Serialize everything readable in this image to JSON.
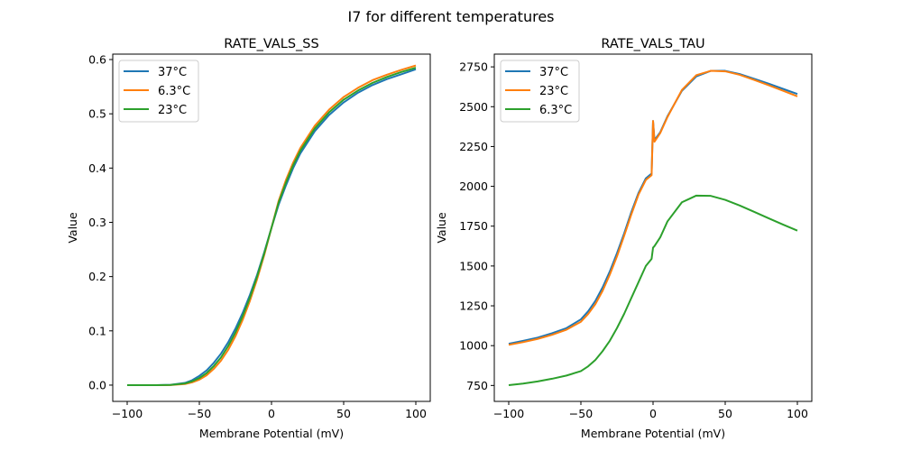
{
  "figure": {
    "suptitle": "I7 for different temperatures"
  },
  "chart_data": [
    {
      "type": "line",
      "title": "RATE_VALS_SS",
      "xlabel": "Membrane Potential (mV)",
      "ylabel": "Value",
      "xlim": [
        -110,
        110
      ],
      "ylim": [
        -0.03,
        0.61
      ],
      "xticks": [
        -100,
        -50,
        0,
        50,
        100
      ],
      "xtick_labels": [
        "−100",
        "−50",
        "0",
        "50",
        "100"
      ],
      "yticks": [
        0.0,
        0.1,
        0.2,
        0.3,
        0.4,
        0.5,
        0.6
      ],
      "ytick_labels": [
        "0.0",
        "0.1",
        "0.2",
        "0.3",
        "0.4",
        "0.5",
        "0.6"
      ],
      "grid": false,
      "legend_position": "top-left",
      "x": [
        -100,
        -90,
        -80,
        -70,
        -60,
        -55,
        -50,
        -45,
        -40,
        -35,
        -30,
        -25,
        -20,
        -15,
        -10,
        -5,
        0,
        5,
        10,
        15,
        20,
        30,
        40,
        50,
        60,
        70,
        80,
        90,
        100
      ],
      "series": [
        {
          "name": "37°C",
          "color": "#1f77b4",
          "values": [
            0.0,
            0.0,
            0.0,
            0.0005,
            0.004,
            0.009,
            0.017,
            0.027,
            0.041,
            0.058,
            0.079,
            0.104,
            0.133,
            0.166,
            0.203,
            0.245,
            0.29,
            0.333,
            0.368,
            0.4,
            0.427,
            0.468,
            0.498,
            0.521,
            0.539,
            0.553,
            0.564,
            0.573,
            0.582
          ]
        },
        {
          "name": "6.3°C",
          "color": "#ff7f0e",
          "values": [
            0.0,
            0.0,
            0.0,
            0.0002,
            0.002,
            0.005,
            0.01,
            0.018,
            0.03,
            0.045,
            0.065,
            0.09,
            0.12,
            0.155,
            0.195,
            0.24,
            0.29,
            0.34,
            0.378,
            0.41,
            0.437,
            0.478,
            0.508,
            0.531,
            0.548,
            0.562,
            0.572,
            0.581,
            0.589
          ]
        },
        {
          "name": "23°C",
          "color": "#2ca02c",
          "values": [
            0.0,
            0.0,
            0.0,
            0.0003,
            0.003,
            0.007,
            0.013,
            0.022,
            0.035,
            0.051,
            0.072,
            0.097,
            0.127,
            0.161,
            0.2,
            0.243,
            0.29,
            0.337,
            0.373,
            0.405,
            0.432,
            0.473,
            0.503,
            0.526,
            0.543,
            0.557,
            0.568,
            0.577,
            0.585
          ]
        }
      ]
    },
    {
      "type": "line",
      "title": "RATE_VALS_TAU",
      "xlabel": "Membrane Potential (mV)",
      "ylabel": "Value",
      "xlim": [
        -110,
        110
      ],
      "ylim": [
        650,
        2830
      ],
      "xticks": [
        -100,
        -50,
        0,
        50,
        100
      ],
      "xtick_labels": [
        "−100",
        "−50",
        "0",
        "50",
        "100"
      ],
      "yticks": [
        750,
        1000,
        1250,
        1500,
        1750,
        2000,
        2250,
        2500,
        2750
      ],
      "ytick_labels": [
        "750",
        "1000",
        "1250",
        "1500",
        "1750",
        "2000",
        "2250",
        "2500",
        "2750"
      ],
      "grid": false,
      "legend_position": "top-left",
      "x": [
        -100,
        -90,
        -80,
        -70,
        -60,
        -50,
        -45,
        -40,
        -35,
        -30,
        -25,
        -20,
        -15,
        -10,
        -5,
        -1,
        0,
        1,
        5,
        10,
        20,
        30,
        40,
        50,
        60,
        70,
        80,
        90,
        100
      ],
      "series": [
        {
          "name": "37°C",
          "color": "#1f77b4",
          "values": [
            1012,
            1030,
            1050,
            1078,
            1110,
            1165,
            1215,
            1280,
            1365,
            1465,
            1580,
            1705,
            1840,
            1960,
            2050,
            2080,
            2410,
            2290,
            2340,
            2440,
            2600,
            2690,
            2725,
            2725,
            2705,
            2675,
            2645,
            2612,
            2580
          ]
        },
        {
          "name": "23°C",
          "color": "#ff7f0e",
          "values": [
            1005,
            1022,
            1042,
            1068,
            1100,
            1150,
            1198,
            1260,
            1343,
            1445,
            1560,
            1690,
            1825,
            1950,
            2040,
            2070,
            2410,
            2280,
            2335,
            2435,
            2605,
            2698,
            2725,
            2722,
            2700,
            2668,
            2635,
            2600,
            2565
          ]
        },
        {
          "name": "6.3°C",
          "color": "#2ca02c",
          "values": [
            752,
            762,
            775,
            792,
            812,
            840,
            870,
            910,
            965,
            1030,
            1110,
            1200,
            1300,
            1400,
            1500,
            1545,
            1615,
            1625,
            1680,
            1780,
            1900,
            1942,
            1940,
            1915,
            1880,
            1840,
            1800,
            1760,
            1722
          ]
        }
      ]
    }
  ]
}
